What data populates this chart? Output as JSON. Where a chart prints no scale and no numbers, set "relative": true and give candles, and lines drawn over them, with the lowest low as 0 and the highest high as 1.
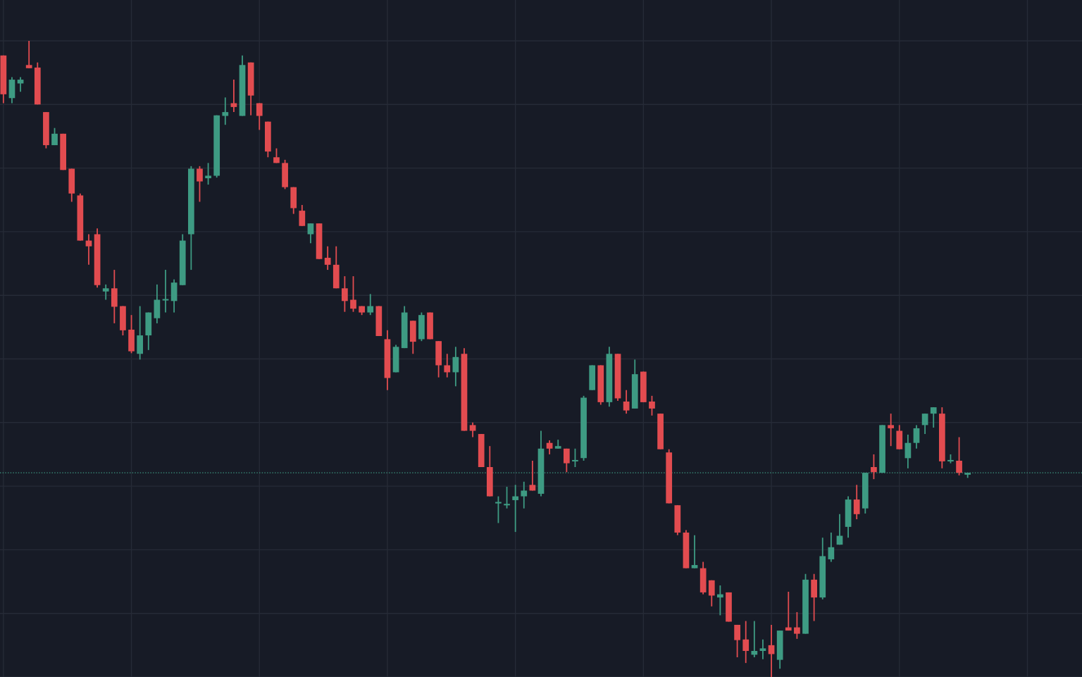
{
  "chart_data": {
    "type": "candlestick",
    "relative": true,
    "grid": true,
    "categories": [
      null,
      null,
      null,
      null,
      null,
      null,
      null,
      null,
      null,
      null,
      null,
      null,
      null,
      null,
      null,
      null,
      null,
      null,
      null,
      null,
      null,
      null,
      null,
      null,
      null,
      null,
      null,
      null,
      null,
      null,
      null,
      null,
      null,
      null,
      null,
      null,
      null,
      null,
      null,
      null,
      null,
      null,
      null,
      null,
      null,
      null,
      null,
      null,
      null,
      null,
      null,
      null,
      null,
      null,
      null,
      null,
      null,
      null,
      null,
      null,
      null,
      null,
      null,
      null,
      null,
      null,
      null,
      null,
      null,
      null,
      null,
      null,
      null,
      null,
      null,
      null,
      null,
      null,
      null,
      null,
      null,
      null,
      null,
      null,
      null,
      null,
      null,
      null,
      null,
      null,
      null,
      null,
      null,
      null,
      null,
      null,
      null,
      null,
      null,
      null,
      null,
      null,
      null,
      null,
      null,
      null,
      null,
      null,
      null,
      null,
      null,
      null,
      null,
      null
    ],
    "ohlc": [
      [
        0.977,
        0.977,
        0.902,
        0.916
      ],
      [
        0.91,
        0.943,
        0.902,
        0.939
      ],
      [
        0.933,
        0.943,
        0.92,
        0.939
      ],
      [
        0.962,
        1.0,
        0.957,
        0.957
      ],
      [
        0.958,
        0.966,
        0.9,
        0.9
      ],
      [
        0.888,
        0.888,
        0.831,
        0.836
      ],
      [
        0.836,
        0.863,
        0.836,
        0.854
      ],
      [
        0.854,
        0.854,
        0.797,
        0.797
      ],
      [
        0.799,
        0.799,
        0.747,
        0.76
      ],
      [
        0.757,
        0.76,
        0.686,
        0.686
      ],
      [
        0.686,
        0.696,
        0.648,
        0.677
      ],
      [
        0.696,
        0.705,
        0.612,
        0.616
      ],
      [
        0.606,
        0.617,
        0.593,
        0.611
      ],
      [
        0.611,
        0.64,
        0.556,
        0.582
      ],
      [
        0.583,
        0.583,
        0.537,
        0.545
      ],
      [
        0.546,
        0.569,
        0.509,
        0.512
      ],
      [
        0.508,
        0.583,
        0.499,
        0.537
      ],
      [
        0.537,
        0.573,
        0.514,
        0.573
      ],
      [
        0.564,
        0.617,
        0.556,
        0.593
      ],
      [
        0.593,
        0.64,
        0.573,
        0.593
      ],
      [
        0.591,
        0.625,
        0.573,
        0.62
      ],
      [
        0.616,
        0.696,
        0.616,
        0.686
      ],
      [
        0.696,
        0.803,
        0.64,
        0.799
      ],
      [
        0.799,
        0.803,
        0.747,
        0.779
      ],
      [
        0.784,
        0.808,
        0.774,
        0.788
      ],
      [
        0.788,
        0.883,
        0.785,
        0.883
      ],
      [
        0.882,
        0.911,
        0.868,
        0.888
      ],
      [
        0.902,
        0.939,
        0.888,
        0.896
      ],
      [
        0.882,
        0.977,
        0.882,
        0.962
      ],
      [
        0.966,
        0.966,
        0.883,
        0.914
      ],
      [
        0.902,
        0.902,
        0.86,
        0.882
      ],
      [
        0.873,
        0.873,
        0.817,
        0.826
      ],
      [
        0.817,
        0.831,
        0.808,
        0.808
      ],
      [
        0.808,
        0.813,
        0.767,
        0.77
      ],
      [
        0.77,
        0.77,
        0.728,
        0.737
      ],
      [
        0.733,
        0.742,
        0.709,
        0.709
      ],
      [
        0.696,
        0.713,
        0.682,
        0.713
      ],
      [
        0.713,
        0.713,
        0.657,
        0.657
      ],
      [
        0.659,
        0.677,
        0.64,
        0.648
      ],
      [
        0.648,
        0.677,
        0.611,
        0.611
      ],
      [
        0.611,
        0.63,
        0.574,
        0.591
      ],
      [
        0.593,
        0.63,
        0.574,
        0.579
      ],
      [
        0.583,
        0.583,
        0.569,
        0.573
      ],
      [
        0.573,
        0.602,
        0.569,
        0.583
      ],
      [
        0.583,
        0.583,
        0.536,
        0.536
      ],
      [
        0.531,
        0.545,
        0.451,
        0.47
      ],
      [
        0.479,
        0.522,
        0.479,
        0.519
      ],
      [
        0.517,
        0.583,
        0.517,
        0.573
      ],
      [
        0.56,
        0.56,
        0.508,
        0.527
      ],
      [
        0.531,
        0.573,
        0.528,
        0.569
      ],
      [
        0.573,
        0.573,
        0.531,
        0.531
      ],
      [
        0.528,
        0.528,
        0.471,
        0.49
      ],
      [
        0.49,
        0.508,
        0.471,
        0.479
      ],
      [
        0.479,
        0.519,
        0.457,
        0.503
      ],
      [
        0.508,
        0.517,
        0.387,
        0.387
      ],
      [
        0.396,
        0.4,
        0.377,
        0.387
      ],
      [
        0.382,
        0.382,
        0.33,
        0.33
      ],
      [
        0.33,
        0.363,
        0.284,
        0.284
      ],
      [
        0.274,
        0.284,
        0.242,
        0.274
      ],
      [
        0.271,
        0.299,
        0.265,
        0.271
      ],
      [
        0.278,
        0.302,
        0.228,
        0.284
      ],
      [
        0.284,
        0.307,
        0.265,
        0.293
      ],
      [
        0.302,
        0.34,
        0.293,
        0.293
      ],
      [
        0.288,
        0.387,
        0.284,
        0.359
      ],
      [
        0.368,
        0.372,
        0.35,
        0.359
      ],
      [
        0.359,
        0.373,
        0.359,
        0.363
      ],
      [
        0.359,
        0.359,
        0.322,
        0.336
      ],
      [
        0.34,
        0.359,
        0.33,
        0.34
      ],
      [
        0.344,
        0.442,
        0.34,
        0.439
      ],
      [
        0.451,
        0.49,
        0.451,
        0.49
      ],
      [
        0.49,
        0.49,
        0.428,
        0.432
      ],
      [
        0.432,
        0.519,
        0.425,
        0.508
      ],
      [
        0.508,
        0.508,
        0.434,
        0.438
      ],
      [
        0.433,
        0.451,
        0.414,
        0.419
      ],
      [
        0.422,
        0.499,
        0.422,
        0.476
      ],
      [
        0.48,
        0.48,
        0.432,
        0.432
      ],
      [
        0.433,
        0.442,
        0.411,
        0.422
      ],
      [
        0.414,
        0.414,
        0.358,
        0.358
      ],
      [
        0.353,
        0.358,
        0.273,
        0.273
      ],
      [
        0.27,
        0.27,
        0.223,
        0.227
      ],
      [
        0.227,
        0.231,
        0.171,
        0.171
      ],
      [
        0.171,
        0.223,
        0.171,
        0.176
      ],
      [
        0.171,
        0.181,
        0.13,
        0.133
      ],
      [
        0.152,
        0.152,
        0.111,
        0.128
      ],
      [
        0.125,
        0.144,
        0.097,
        0.13
      ],
      [
        0.133,
        0.133,
        0.087,
        0.087
      ],
      [
        0.082,
        0.082,
        0.031,
        0.058
      ],
      [
        0.059,
        0.088,
        0.022,
        0.041
      ],
      [
        0.035,
        0.088,
        0.031,
        0.041
      ],
      [
        0.041,
        0.059,
        0.028,
        0.045
      ],
      [
        0.05,
        0.082,
        0.0,
        0.036
      ],
      [
        0.027,
        0.073,
        0.013,
        0.073
      ],
      [
        0.078,
        0.134,
        0.073,
        0.073
      ],
      [
        0.078,
        0.102,
        0.06,
        0.068
      ],
      [
        0.068,
        0.162,
        0.068,
        0.153
      ],
      [
        0.153,
        0.162,
        0.088,
        0.125
      ],
      [
        0.125,
        0.219,
        0.122,
        0.19
      ],
      [
        0.185,
        0.227,
        0.181,
        0.204
      ],
      [
        0.208,
        0.256,
        0.208,
        0.222
      ],
      [
        0.236,
        0.284,
        0.219,
        0.279
      ],
      [
        0.279,
        0.302,
        0.248,
        0.256
      ],
      [
        0.265,
        0.321,
        0.257,
        0.321
      ],
      [
        0.33,
        0.35,
        0.311,
        0.322
      ],
      [
        0.321,
        0.396,
        0.321,
        0.396
      ],
      [
        0.396,
        0.414,
        0.363,
        0.391
      ],
      [
        0.387,
        0.396,
        0.358,
        0.358
      ],
      [
        0.344,
        0.381,
        0.328,
        0.368
      ],
      [
        0.368,
        0.396,
        0.359,
        0.391
      ],
      [
        0.396,
        0.414,
        0.382,
        0.414
      ],
      [
        0.414,
        0.424,
        0.392,
        0.424
      ],
      [
        0.414,
        0.424,
        0.328,
        0.339
      ],
      [
        0.34,
        0.35,
        0.336,
        0.34
      ],
      [
        0.34,
        0.377,
        0.317,
        0.321
      ],
      [
        0.318,
        0.321,
        0.313,
        0.321
      ]
    ],
    "colors": [
      "#e24c50",
      "#3e9b83",
      "#3e9b83",
      "#e24c50",
      "#e24c50",
      "#e24c50",
      "#3e9b83",
      "#e24c50",
      "#e24c50",
      "#e24c50",
      "#e24c50",
      "#e24c50",
      "#3e9b83",
      "#e24c50",
      "#e24c50",
      "#e24c50",
      "#3e9b83",
      "#3e9b83",
      "#3e9b83",
      "#3e9b83",
      "#3e9b83",
      "#3e9b83",
      "#3e9b83",
      "#e24c50",
      "#3e9b83",
      "#3e9b83",
      "#3e9b83",
      "#e24c50",
      "#3e9b83",
      "#e24c50",
      "#e24c50",
      "#e24c50",
      "#e24c50",
      "#e24c50",
      "#e24c50",
      "#e24c50",
      "#3e9b83",
      "#e24c50",
      "#e24c50",
      "#e24c50",
      "#e24c50",
      "#e24c50",
      "#e24c50",
      "#3e9b83",
      "#e24c50",
      "#e24c50",
      "#3e9b83",
      "#3e9b83",
      "#e24c50",
      "#3e9b83",
      "#e24c50",
      "#e24c50",
      "#e24c50",
      "#3e9b83",
      "#e24c50",
      "#e24c50",
      "#e24c50",
      "#e24c50",
      "#3e9b83",
      "#3e9b83",
      "#3e9b83",
      "#3e9b83",
      "#e24c50",
      "#3e9b83",
      "#e24c50",
      "#3e9b83",
      "#e24c50",
      "#3e9b83",
      "#3e9b83",
      "#3e9b83",
      "#e24c50",
      "#3e9b83",
      "#e24c50",
      "#e24c50",
      "#3e9b83",
      "#e24c50",
      "#e24c50",
      "#e24c50",
      "#e24c50",
      "#e24c50",
      "#e24c50",
      "#3e9b83",
      "#e24c50",
      "#e24c50",
      "#3e9b83",
      "#e24c50",
      "#e24c50",
      "#e24c50",
      "#3e9b83",
      "#3e9b83",
      "#e24c50",
      "#3e9b83",
      "#e24c50",
      "#e24c50",
      "#3e9b83",
      "#e24c50",
      "#3e9b83",
      "#3e9b83",
      "#3e9b83",
      "#3e9b83",
      "#e24c50",
      "#3e9b83",
      "#e24c50",
      "#3e9b83",
      "#e24c50",
      "#e24c50",
      "#3e9b83",
      "#3e9b83",
      "#3e9b83",
      "#3e9b83",
      "#e24c50",
      "#3e9b83",
      "#e24c50",
      "#3e9b83"
    ],
    "ref_lines": [
      {
        "axis": "y",
        "value": 0.321,
        "color": "#3e9b83",
        "line_style": "dotted"
      }
    ]
  }
}
